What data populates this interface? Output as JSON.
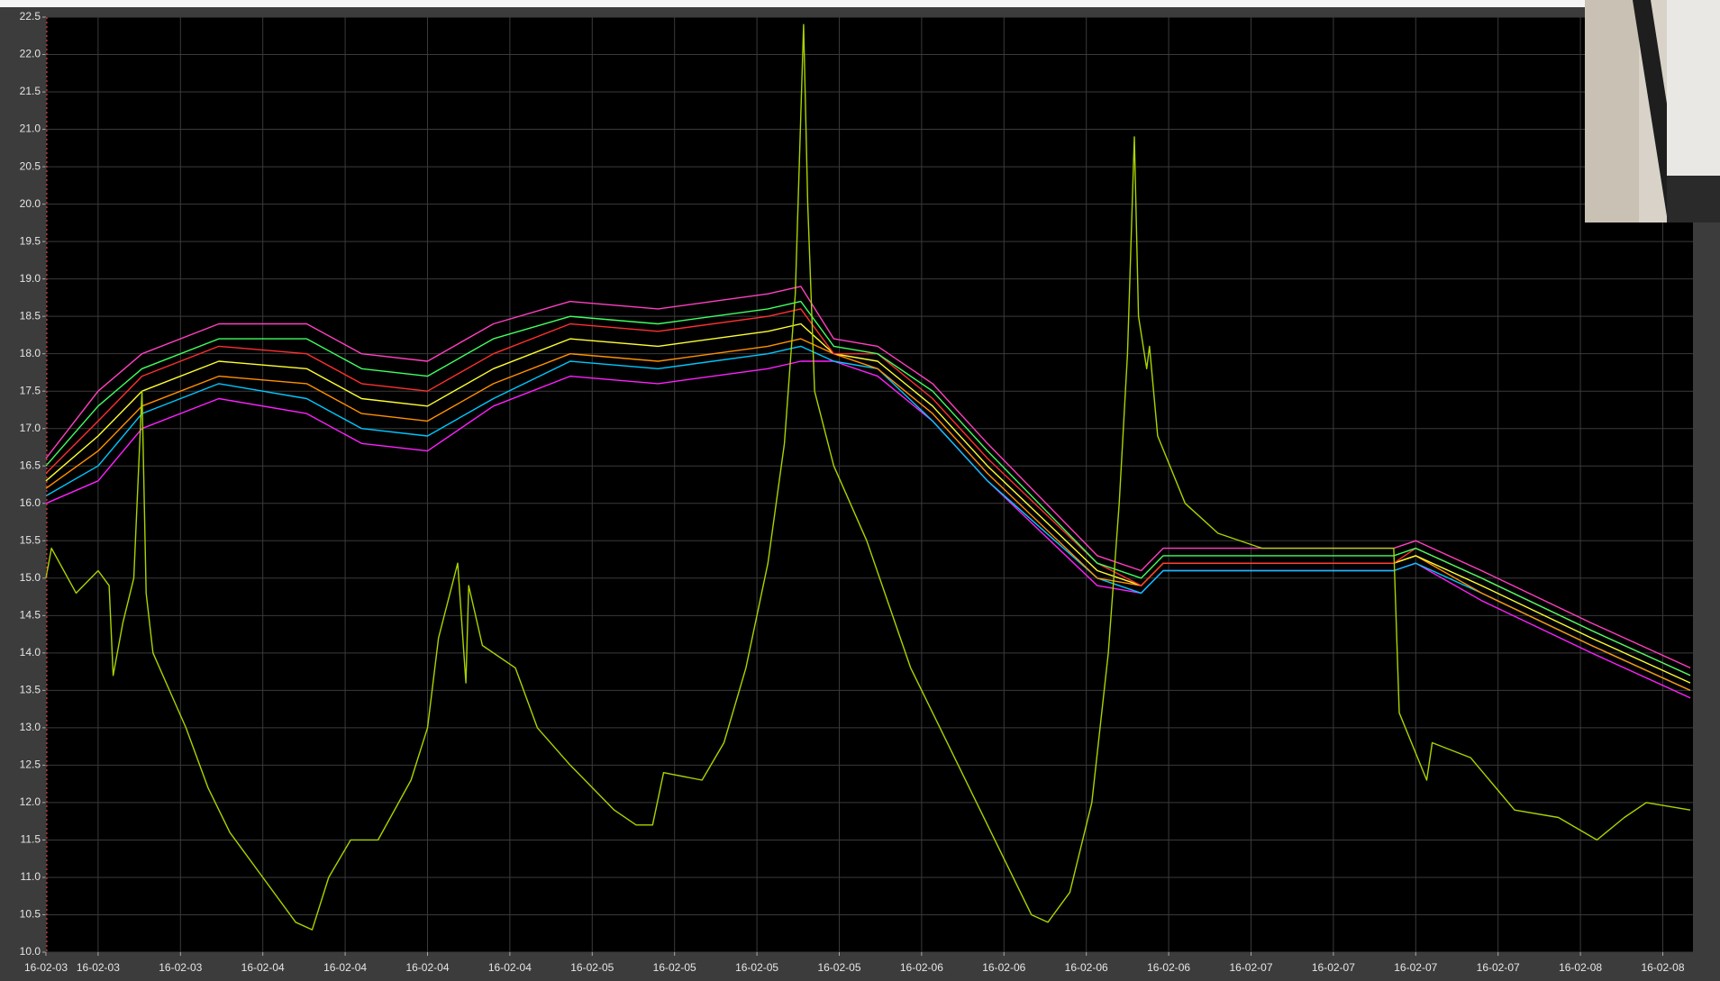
{
  "chart_data": {
    "type": "line",
    "xlim": [
      8.7,
      128.7
    ],
    "ylim": [
      10.0,
      22.5
    ],
    "grid": true,
    "xticks": [
      {
        "value": 8.7,
        "label": "16-02-03"
      },
      {
        "value": 12.5,
        "label": "16-02-03"
      },
      {
        "value": 18.5,
        "label": "16-02-03"
      },
      {
        "value": 24.5,
        "label": "16-02-04"
      },
      {
        "value": 30.5,
        "label": "16-02-04"
      },
      {
        "value": 36.5,
        "label": "16-02-04"
      },
      {
        "value": 42.5,
        "label": "16-02-04"
      },
      {
        "value": 48.5,
        "label": "16-02-05"
      },
      {
        "value": 54.5,
        "label": "16-02-05"
      },
      {
        "value": 60.5,
        "label": "16-02-05"
      },
      {
        "value": 66.5,
        "label": "16-02-05"
      },
      {
        "value": 72.5,
        "label": "16-02-06"
      },
      {
        "value": 78.5,
        "label": "16-02-06"
      },
      {
        "value": 84.5,
        "label": "16-02-06"
      },
      {
        "value": 90.5,
        "label": "16-02-06"
      },
      {
        "value": 96.5,
        "label": "16-02-07"
      },
      {
        "value": 102.5,
        "label": "16-02-07"
      },
      {
        "value": 108.5,
        "label": "16-02-07"
      },
      {
        "value": 114.5,
        "label": "16-02-07"
      },
      {
        "value": 120.5,
        "label": "16-02-08"
      },
      {
        "value": 126.5,
        "label": "16-02-08"
      }
    ],
    "yticks": [
      {
        "value": 10,
        "label": "10.0"
      },
      10.5,
      {
        "value": 11,
        "label": "11.0"
      },
      11.5,
      {
        "value": 12,
        "label": "12.0"
      },
      12.5,
      {
        "value": 13,
        "label": "13.0"
      },
      13.5,
      {
        "value": 14,
        "label": "14.0"
      },
      14.5,
      {
        "value": 15,
        "label": "15.0"
      },
      15.5,
      {
        "value": 16,
        "label": "16.0"
      },
      16.5,
      {
        "value": 17,
        "label": "17.0"
      },
      17.5,
      {
        "value": 18,
        "label": "18.0"
      },
      18.5,
      {
        "value": 19,
        "label": "19.0"
      },
      19.5,
      {
        "value": 20,
        "label": "20.0"
      },
      20.5,
      {
        "value": 21,
        "label": "21.0"
      },
      21.5,
      {
        "value": 22,
        "label": "22.0"
      },
      22.5
    ],
    "x": [
      8.7,
      12.5,
      15.7,
      21.3,
      27.7,
      31.7,
      36.5,
      41.3,
      46.9,
      53.3,
      61.3,
      63.7,
      66.1,
      69.3,
      73.3,
      77.3,
      85.3,
      88.5,
      90.1,
      97.3,
      106.9,
      108.5,
      113.3,
      121.3,
      128.5
    ],
    "series": [
      {
        "color": "#ff20ff",
        "values": [
          16.0,
          16.3,
          17.0,
          17.4,
          17.2,
          16.8,
          16.7,
          17.3,
          17.7,
          17.6,
          17.8,
          17.9,
          17.9,
          17.7,
          17.1,
          16.3,
          14.9,
          14.8,
          15.1,
          15.1,
          15.1,
          15.2,
          14.7,
          14.0,
          13.4
        ]
      },
      {
        "color": "#00c8ff",
        "values": [
          16.1,
          16.5,
          17.2,
          17.6,
          17.4,
          17.0,
          16.9,
          17.4,
          17.9,
          17.8,
          18.0,
          18.1,
          17.9,
          17.8,
          17.1,
          16.3,
          15.0,
          14.8,
          15.1,
          15.1,
          15.1,
          15.2,
          14.8,
          14.1,
          13.5
        ]
      },
      {
        "color": "#ff9000",
        "values": [
          16.2,
          16.7,
          17.3,
          17.7,
          17.6,
          17.2,
          17.1,
          17.6,
          18.0,
          17.9,
          18.1,
          18.2,
          18.0,
          17.8,
          17.2,
          16.4,
          15.0,
          14.9,
          15.2,
          15.2,
          15.2,
          15.3,
          14.8,
          14.1,
          13.5
        ]
      },
      {
        "color": "#ffff30",
        "values": [
          16.3,
          16.9,
          17.5,
          17.9,
          17.8,
          17.4,
          17.3,
          17.8,
          18.2,
          18.1,
          18.3,
          18.4,
          18.0,
          17.9,
          17.3,
          16.5,
          15.1,
          14.9,
          15.2,
          15.2,
          15.2,
          15.3,
          14.9,
          14.2,
          13.6
        ]
      },
      {
        "color": "#ff3030",
        "values": [
          16.4,
          17.1,
          17.7,
          18.1,
          18.0,
          17.6,
          17.5,
          18.0,
          18.4,
          18.3,
          18.5,
          18.6,
          18.0,
          18.0,
          17.4,
          16.6,
          15.2,
          14.9,
          15.2,
          15.2,
          15.2,
          15.4,
          15.0,
          14.3,
          13.7
        ]
      },
      {
        "color": "#40ff60",
        "values": [
          16.5,
          17.3,
          17.8,
          18.2,
          18.2,
          17.8,
          17.7,
          18.2,
          18.5,
          18.4,
          18.6,
          18.7,
          18.1,
          18.0,
          17.5,
          16.7,
          15.2,
          15.0,
          15.3,
          15.3,
          15.3,
          15.4,
          15.0,
          14.3,
          13.7
        ]
      },
      {
        "color": "#ff40c0",
        "values": [
          16.6,
          17.5,
          18.0,
          18.4,
          18.4,
          18.0,
          17.9,
          18.4,
          18.7,
          18.6,
          18.8,
          18.9,
          18.2,
          18.1,
          17.6,
          16.8,
          15.3,
          15.1,
          15.4,
          15.4,
          15.4,
          15.5,
          15.1,
          14.4,
          13.8
        ]
      },
      {
        "color": "#a8d400",
        "x": [
          8.7,
          9.1,
          10.9,
          12.5,
          13.3,
          13.6,
          14.3,
          15.1,
          15.7,
          16.0,
          16.5,
          17.7,
          18.9,
          20.5,
          22.1,
          24.5,
          26.9,
          28.1,
          29.3,
          30.9,
          32.9,
          35.3,
          36.5,
          37.3,
          38.7,
          39.3,
          39.5,
          40.5,
          42.9,
          44.5,
          46.9,
          50.1,
          51.7,
          52.9,
          53.7,
          56.5,
          58.1,
          59.7,
          61.3,
          62.5,
          63.3,
          63.9,
          64.2,
          64.7,
          66.1,
          68.5,
          71.7,
          74.1,
          77.3,
          80.5,
          81.7,
          83.3,
          84.9,
          86.1,
          86.9,
          87.5,
          88.0,
          88.3,
          88.9,
          89.1,
          89.7,
          91.7,
          94.1,
          97.3,
          106.9,
          107.3,
          109.3,
          109.7,
          112.5,
          115.7,
          118.9,
          121.7,
          123.7,
          125.3,
          128.5
        ],
        "values": [
          15.0,
          15.4,
          14.8,
          15.1,
          14.9,
          13.7,
          14.4,
          15.0,
          17.5,
          14.8,
          14.0,
          13.5,
          13.0,
          12.2,
          11.6,
          11.0,
          10.4,
          10.3,
          11.0,
          11.5,
          11.5,
          12.3,
          13.0,
          14.2,
          15.2,
          13.6,
          14.9,
          14.1,
          13.8,
          13.0,
          12.5,
          11.9,
          11.7,
          11.7,
          12.4,
          12.3,
          12.8,
          13.8,
          15.2,
          16.8,
          18.8,
          22.4,
          20.0,
          17.5,
          16.5,
          15.5,
          13.8,
          12.9,
          11.7,
          10.5,
          10.4,
          10.8,
          12.0,
          14.0,
          16.0,
          18.0,
          20.9,
          18.5,
          17.8,
          18.1,
          16.9,
          16.0,
          15.6,
          15.4,
          15.4,
          13.2,
          12.3,
          12.8,
          12.6,
          11.9,
          11.8,
          11.5,
          11.8,
          12.0,
          11.9
        ]
      }
    ]
  }
}
